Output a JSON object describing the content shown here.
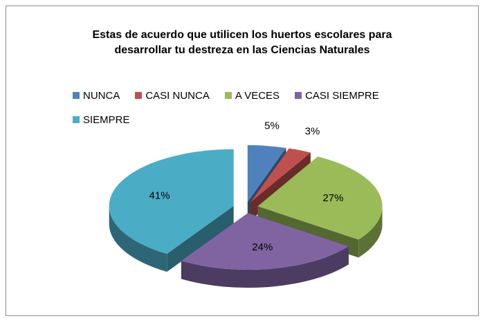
{
  "chart_data": {
    "type": "pie3d",
    "title": "Estas de acuerdo que utilicen los huertos escolares para desarrollar tu destreza en las Ciencias Naturales",
    "categories": [
      "NUNCA",
      "CASI NUNCA",
      "A VECES",
      "CASI SIEMPRE",
      "SIEMPRE"
    ],
    "values": [
      5,
      3,
      27,
      24,
      41
    ],
    "value_labels": [
      "5%",
      "3%",
      "27%",
      "24%",
      "41%"
    ],
    "colors": [
      "#4f81bd",
      "#c0504d",
      "#9bbb59",
      "#8064a2",
      "#4bacc6"
    ],
    "legend": "top"
  }
}
